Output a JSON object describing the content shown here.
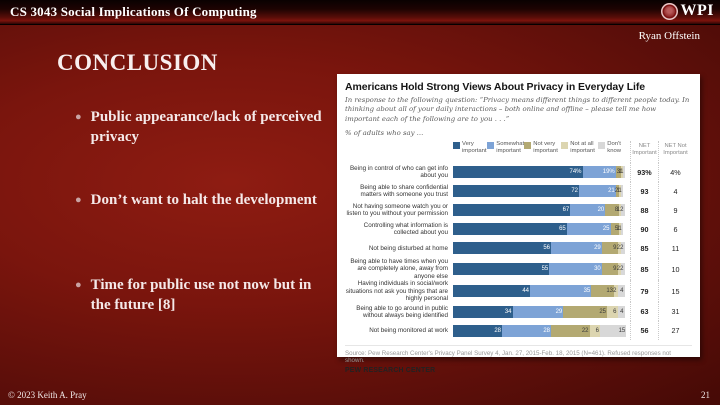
{
  "slide": {
    "course_title": "CS 3043 Social Implications Of Computing",
    "logo_text": "WPI",
    "author": "Ryan Offstein",
    "title": "CONCLUSION",
    "bullets": [
      "Public appearance/lack of perceived privacy",
      "Don’t want to halt the development",
      "Time for public use not now but in the future [8]"
    ],
    "footer_left": "© 2023 Keith A. Pray",
    "page_number": "21"
  },
  "chart_data": {
    "type": "bar",
    "stacked": true,
    "orientation": "horizontal",
    "title": "Americans Hold Strong Views About Privacy in Everyday Life",
    "subtitle": "In response to the following question: “Privacy means different things to different people today. In thinking about all of your daily interactions – both online and offline – please tell me how important each of the following are to you . . .”",
    "unit_note": "% of adults who say ...",
    "legend": [
      {
        "label": "Very important",
        "color": "#2E5F8C"
      },
      {
        "label": "Somewhat important",
        "color": "#7DA3D6"
      },
      {
        "label": "Not very important",
        "color": "#B3A972"
      },
      {
        "label": "Not at all important",
        "color": "#DCD5B0"
      },
      {
        "label": "Don't know",
        "color": "#D8D8D8"
      }
    ],
    "net_headers": [
      "NET Important",
      "NET Not Important"
    ],
    "xlim": [
      0,
      100
    ],
    "rows": [
      {
        "label": "Being in control of who can get info about you",
        "values": [
          74,
          19,
          3,
          1,
          1
        ],
        "labels": [
          "74%",
          "19%",
          "3",
          "1",
          "1"
        ],
        "net_important": "93%",
        "net_not_important": "4%"
      },
      {
        "label": "Being able to share confidential matters with someone you trust",
        "values": [
          72,
          21,
          2,
          1,
          1
        ],
        "labels": [
          "72",
          "21",
          "2",
          "1",
          "1"
        ],
        "net_important": "93",
        "net_not_important": "4"
      },
      {
        "label": "Not having someone watch you or listen to you without your permission",
        "values": [
          67,
          20,
          8,
          1,
          2
        ],
        "labels": [
          "67",
          "20",
          "8",
          "1",
          "2"
        ],
        "net_important": "88",
        "net_not_important": "9"
      },
      {
        "label": "Controlling what information is collected about you",
        "values": [
          65,
          25,
          5,
          1,
          1
        ],
        "labels": [
          "65",
          "25",
          "5",
          "1",
          "1"
        ],
        "net_important": "90",
        "net_not_important": "6"
      },
      {
        "label": "Not being disturbed at home",
        "values": [
          56,
          29,
          9,
          2,
          2
        ],
        "labels": [
          "56",
          "29",
          "9",
          "2",
          "2"
        ],
        "net_important": "85",
        "net_not_important": "11"
      },
      {
        "label": "Being able to have times when you are completely alone, away from anyone else",
        "values": [
          55,
          30,
          9,
          2,
          2
        ],
        "labels": [
          "55",
          "30",
          "9",
          "2",
          "2"
        ],
        "net_important": "85",
        "net_not_important": "10"
      },
      {
        "label": "Having individuals in social/work situations not ask you things that are highly personal",
        "values": [
          44,
          35,
          13,
          2,
          4
        ],
        "labels": [
          "44",
          "35",
          "13",
          "2",
          "4"
        ],
        "net_important": "79",
        "net_not_important": "15"
      },
      {
        "label": "Being able to go around in public without always being identified",
        "values": [
          34,
          29,
          25,
          6,
          4
        ],
        "labels": [
          "34",
          "29",
          "25",
          "6",
          "4"
        ],
        "net_important": "63",
        "net_not_important": "31"
      },
      {
        "label": "Not being monitored at work",
        "values": [
          28,
          28,
          22,
          6,
          15
        ],
        "labels": [
          "28",
          "28",
          "22",
          "6",
          "15"
        ],
        "net_important": "56",
        "net_not_important": "27"
      }
    ],
    "source": "Source: Pew Research Center's Privacy Panel Survey 4, Jan. 27, 2015-Feb. 18, 2015 (N=461). Refused responses not shown.",
    "branding": "PEW RESEARCH CENTER"
  }
}
